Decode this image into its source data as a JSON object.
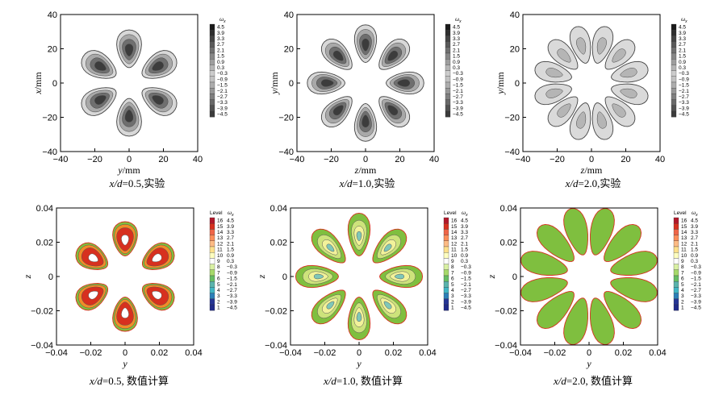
{
  "colorbar": {
    "omega_label": "ω",
    "omega_sub": "x",
    "level_label": "Level",
    "omega_values": [
      "4.5",
      "3.9",
      "3.3",
      "2.7",
      "2.1",
      "1.5",
      "0.9",
      "0.3",
      "−0.3",
      "−0.9",
      "−1.5",
      "−2.1",
      "−2.7",
      "−3.3",
      "−3.9",
      "−4.5"
    ],
    "level_values": [
      "16",
      "15",
      "14",
      "13",
      "12",
      "11",
      "10",
      "9",
      "8",
      "7",
      "6",
      "5",
      "4",
      "3",
      "2",
      "1"
    ],
    "gray_colors": [
      "#1a1a1a",
      "#2e2e2e",
      "#444444",
      "#5a5a5a",
      "#707070",
      "#878787",
      "#9e9e9e",
      "#b5b5b5",
      "#cccccc",
      "#c2c2c2",
      "#adadad",
      "#979797",
      "#808080",
      "#696969",
      "#525252",
      "#3b3b3b"
    ],
    "color_colors": [
      "#b2182b",
      "#d7301f",
      "#ef6548",
      "#fc8d59",
      "#fdbb84",
      "#fee08b",
      "#ffffbf",
      "#ffffff",
      "#d9f0a3",
      "#a6d96a",
      "#66bd63",
      "#5ab4ac",
      "#41b6c4",
      "#2c7fb8",
      "#253494",
      "#1f2a8a"
    ]
  },
  "chart_data": [
    {
      "type": "contour",
      "panel": "top-left",
      "caption": {
        "xd": "x/d",
        "rest": "=0.5,实验"
      },
      "xlabel": {
        "var": "y",
        "unit": "/mm"
      },
      "ylabel": {
        "var": "x",
        "unit": "/mm"
      },
      "xlim": [
        -40,
        40
      ],
      "ylim": [
        -40,
        40
      ],
      "xticks": [
        "−40",
        "−20",
        "0",
        "20",
        "40"
      ],
      "yticks": [
        "40",
        "20",
        "0",
        "−20",
        "−40"
      ],
      "style": "gray",
      "lobes": 6,
      "lobe_length": 22,
      "lobe_width": 9,
      "inner_radius": 9
    },
    {
      "type": "contour",
      "panel": "top-middle",
      "caption": {
        "xd": "x/d",
        "rest": "=1.0,实验"
      },
      "xlabel": {
        "var": "z",
        "unit": "/mm"
      },
      "ylabel": {
        "var": "y",
        "unit": "/mm"
      },
      "xlim": [
        -40,
        40
      ],
      "ylim": [
        -40,
        40
      ],
      "xticks": [
        "−40",
        "−20",
        "0",
        "20",
        "40"
      ],
      "yticks": [
        "40",
        "20",
        "0",
        "−20",
        "−40"
      ],
      "style": "gray",
      "lobes": 8,
      "lobe_length": 22,
      "lobe_width": 8,
      "inner_radius": 12
    },
    {
      "type": "contour",
      "panel": "top-right",
      "caption": {
        "xd": "x/d",
        "rest": "=2.0,实验"
      },
      "xlabel": {
        "var": "z",
        "unit": "/mm"
      },
      "ylabel": {
        "var": "y",
        "unit": "/mm"
      },
      "xlim": [
        -40,
        40
      ],
      "ylim": [
        -40,
        40
      ],
      "xticks": [
        "−40",
        "−20",
        "0",
        "20",
        "40"
      ],
      "yticks": [
        "40",
        "20",
        "0",
        "−20",
        "−40"
      ],
      "style": "gray-light",
      "lobes": 12,
      "lobe_length": 22,
      "lobe_width": 7,
      "inner_radius": 12
    },
    {
      "type": "contour",
      "panel": "bottom-left",
      "caption": {
        "xd": "x/d",
        "rest": "=0.5, 数值计算"
      },
      "xlabel": {
        "var": "y",
        "unit": ""
      },
      "ylabel": {
        "var": "z",
        "unit": ""
      },
      "xlim": [
        -0.04,
        0.04
      ],
      "ylim": [
        -0.04,
        0.04
      ],
      "xticks": [
        "−0.04",
        "−0.02",
        "0",
        "0.02",
        "0.04"
      ],
      "yticks": [
        "0.04",
        "0.02",
        "0",
        "−0.02",
        "−0.04"
      ],
      "style": "color",
      "lobes": 6,
      "lobe_length": 0.02,
      "lobe_width": 0.009,
      "inner_radius": 0.012
    },
    {
      "type": "contour",
      "panel": "bottom-middle",
      "caption": {
        "xd": "x/d",
        "rest": "=1.0, 数值计算"
      },
      "xlabel": {
        "var": "y",
        "unit": ""
      },
      "ylabel": {
        "var": "z",
        "unit": ""
      },
      "xlim": [
        -0.04,
        0.04
      ],
      "ylim": [
        -0.04,
        0.04
      ],
      "xticks": [
        "−0.04",
        "−0.02",
        "0",
        "0.02",
        "0.04"
      ],
      "yticks": [
        "0.04",
        "0.02",
        "0",
        "−0.02",
        "−0.04"
      ],
      "style": "color-mid",
      "lobes": 8,
      "lobe_length": 0.025,
      "lobe_width": 0.008,
      "inner_radius": 0.012
    },
    {
      "type": "contour",
      "panel": "bottom-right",
      "caption": {
        "xd": "x/d",
        "rest": "=2.0, 数值计算"
      },
      "xlabel": {
        "var": "y",
        "unit": ""
      },
      "ylabel": {
        "var": "z",
        "unit": ""
      },
      "xlim": [
        -0.04,
        0.04
      ],
      "ylim": [
        -0.04,
        0.04
      ],
      "xticks": [
        "−0.04",
        "−0.02",
        "0",
        "0.02",
        "0.04"
      ],
      "yticks": [
        "0.04",
        "0.02",
        "0",
        "−0.02",
        "−0.04"
      ],
      "style": "color-green",
      "lobes": 12,
      "lobe_length": 0.028,
      "lobe_width": 0.008,
      "inner_radius": 0.013
    }
  ]
}
